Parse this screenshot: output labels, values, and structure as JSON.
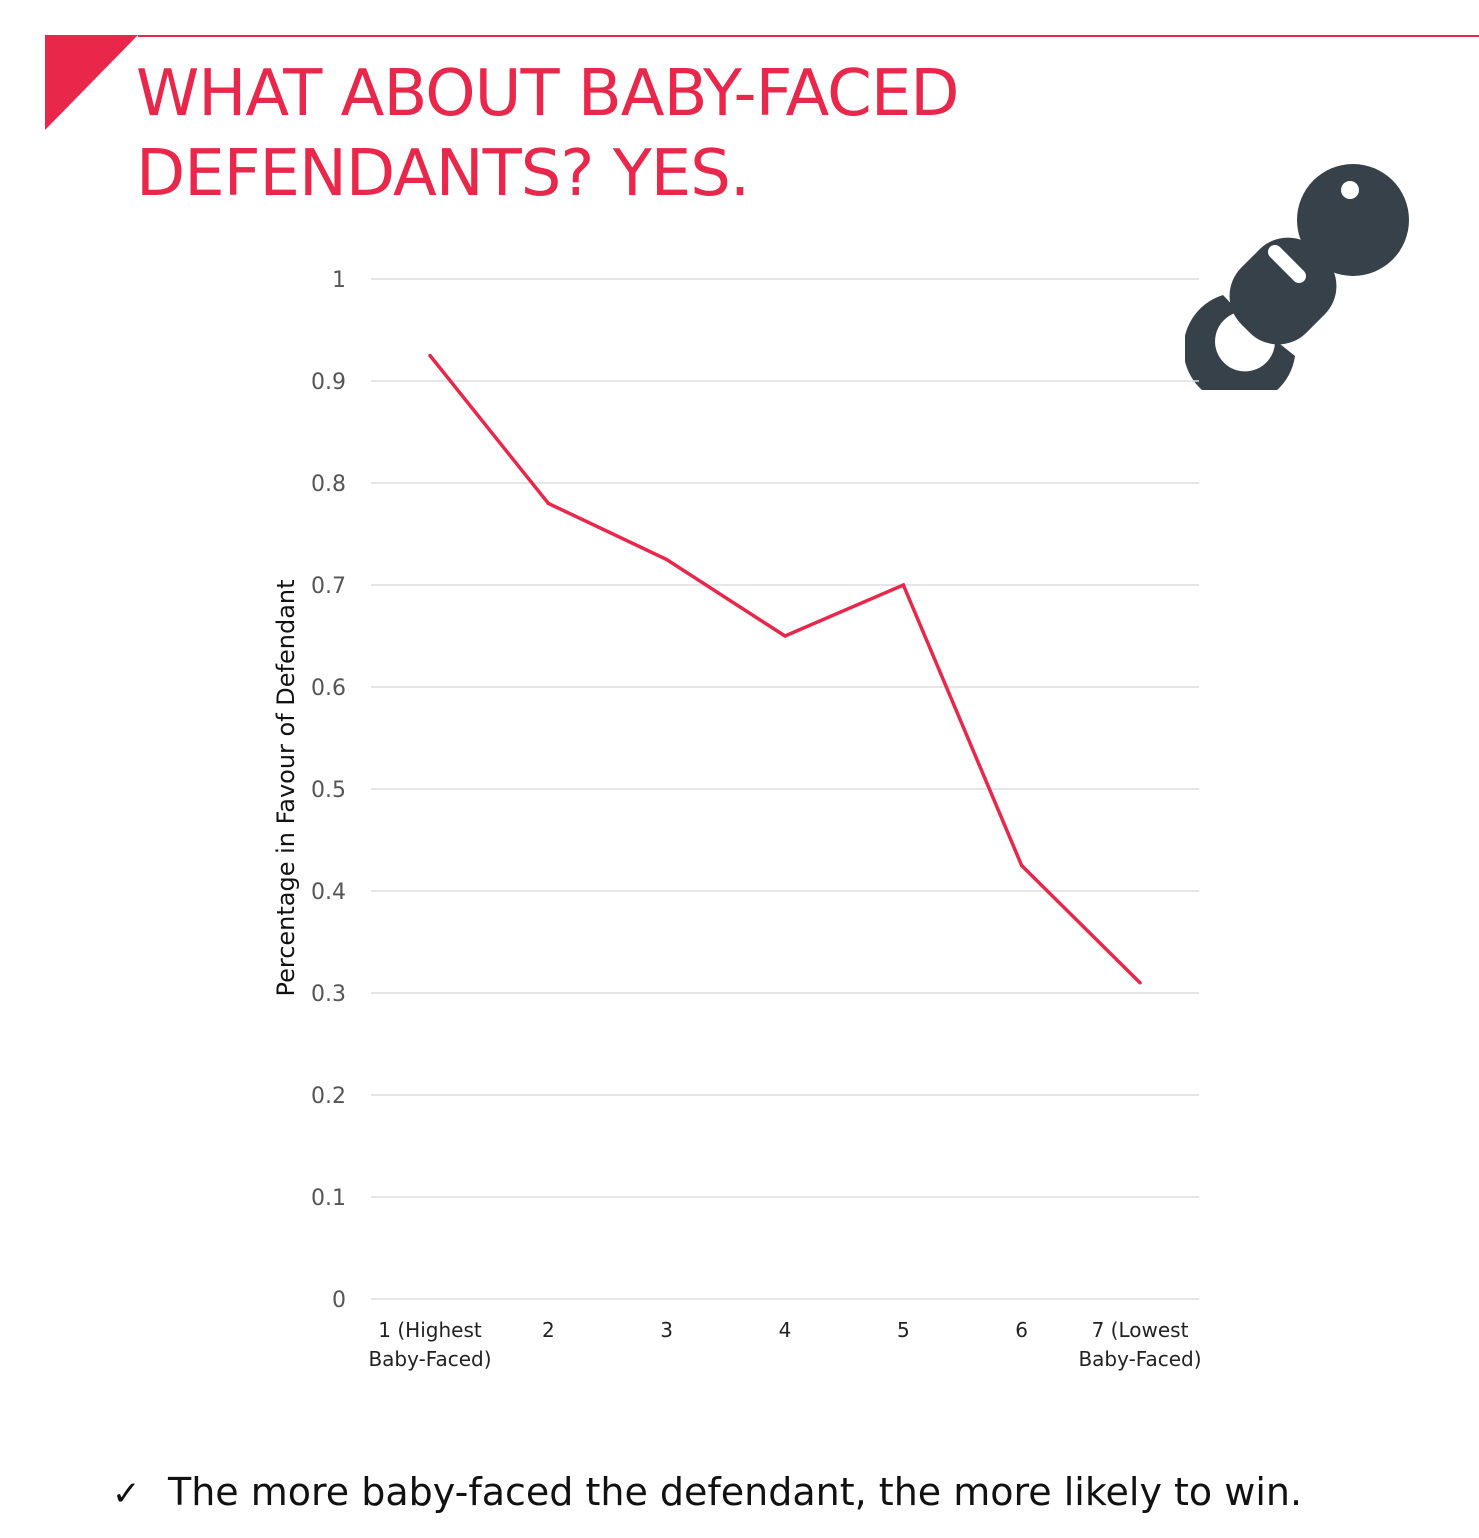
{
  "slide": {
    "title_line_1": "WHAT ABOUT BABY-FACED",
    "title_line_2": "DEFENDANTS? YES.",
    "accent_color": "#e8274b",
    "icon": "pacifier-icon",
    "icon_color": "#37414a",
    "takeaway_check": "✓",
    "takeaway_text": "The more baby-faced the defendant, the more likely to win."
  },
  "chart_data": {
    "type": "line",
    "title": "",
    "xlabel": "",
    "ylabel": "Percentage in Favour of Defendant",
    "categories": [
      [
        "1 (Highest",
        "Baby-Faced)"
      ],
      [
        "2"
      ],
      [
        "3"
      ],
      [
        "4"
      ],
      [
        "5"
      ],
      [
        "6"
      ],
      [
        "7 (Lowest",
        "Baby-Faced)"
      ]
    ],
    "values": [
      0.925,
      0.78,
      0.725,
      0.65,
      0.7,
      0.425,
      0.31
    ],
    "ylim": [
      0,
      1
    ],
    "yticks": [
      0,
      0.1,
      0.2,
      0.3,
      0.4,
      0.5,
      0.6,
      0.7,
      0.8,
      0.9,
      1
    ],
    "ytick_labels": [
      "0",
      "0.1",
      "0.2",
      "0.3",
      "0.4",
      "0.5",
      "0.6",
      "0.7",
      "0.8",
      "0.9",
      "1"
    ],
    "grid": true,
    "legend": "none",
    "line_color": "#e8274b",
    "grid_color": "#dddddd"
  }
}
